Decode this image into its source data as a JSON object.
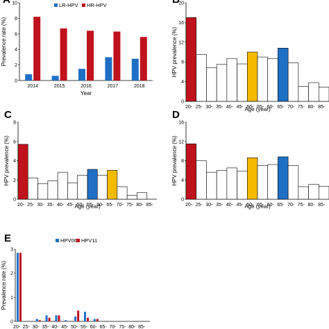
{
  "panels": [
    {
      "letter": "A"
    },
    {
      "letter": "B"
    },
    {
      "letter": "C"
    },
    {
      "letter": "D"
    },
    {
      "letter": "E"
    }
  ],
  "chart_data": [
    {
      "id": "A",
      "type": "bar",
      "categories": [
        "2014",
        "2015",
        "2016",
        "2017",
        "2018"
      ],
      "series": [
        {
          "name": "LR-HPV",
          "color": "#1f6fc5",
          "values": [
            0.8,
            0.6,
            1.5,
            3.0,
            2.8
          ]
        },
        {
          "name": "HR-HPV",
          "color": "#c0121c",
          "values": [
            8.2,
            6.7,
            6.4,
            6.3,
            5.6
          ]
        }
      ],
      "xlabel": "Year",
      "ylabel": "Prevalence rate (%)",
      "ylim": [
        0,
        10
      ],
      "yticks": [
        "0",
        "2",
        "4",
        "6",
        "8",
        "10"
      ],
      "legend": "top"
    },
    {
      "id": "B",
      "type": "bar",
      "categories": [
        "20-",
        "25-",
        "30-",
        "35-",
        "40-",
        "45-",
        "50-",
        "55-",
        "60-",
        "65-",
        "70-",
        "75-",
        "80-",
        "85-"
      ],
      "values": [
        17.0,
        9.5,
        6.8,
        7.5,
        8.7,
        7.6,
        10.0,
        9.0,
        8.7,
        10.8,
        7.8,
        3.0,
        3.8,
        2.9
      ],
      "highlight_colors": {
        "0": "#c0121c",
        "6": "#f5bb00",
        "9": "#1f6fc5"
      },
      "xlabel": "Age (year)",
      "ylabel": "HPV prevalence (%)",
      "ylim": [
        0,
        20
      ],
      "yticks": [
        "0",
        "4",
        "8",
        "12",
        "16",
        "20"
      ]
    },
    {
      "id": "C",
      "type": "bar",
      "categories": [
        "20-",
        "25-",
        "30-",
        "35-",
        "40-",
        "45-",
        "50-",
        "55-",
        "60-",
        "65-",
        "70-",
        "75-",
        "80-",
        "85-"
      ],
      "values": [
        5.7,
        2.2,
        1.6,
        1.9,
        2.8,
        1.7,
        2.5,
        3.1,
        2.5,
        3.0,
        1.3,
        0.4,
        0.7,
        0.0
      ],
      "highlight_colors": {
        "0": "#c0121c",
        "7": "#1f6fc5",
        "9": "#f5bb00"
      },
      "xlabel": "Age (year)",
      "ylabel": "HPV prevalence (%)",
      "ylim": [
        0,
        8
      ],
      "yticks": [
        "0",
        "2",
        "4",
        "6",
        "8"
      ]
    },
    {
      "id": "D",
      "type": "bar",
      "categories": [
        "20-",
        "25-",
        "30-",
        "35-",
        "40-",
        "45-",
        "50-",
        "55-",
        "60-",
        "65-",
        "70-",
        "75-",
        "80-",
        "85-"
      ],
      "values": [
        11.5,
        8.0,
        5.6,
        6.0,
        6.5,
        5.8,
        8.6,
        7.0,
        7.2,
        8.8,
        7.0,
        2.6,
        3.1,
        2.7
      ],
      "highlight_colors": {
        "0": "#c0121c",
        "6": "#f5bb00",
        "9": "#1f6fc5"
      },
      "xlabel": "Age (year)",
      "ylabel": "HPV prevalence (%)",
      "ylim": [
        0,
        16
      ],
      "yticks": [
        "0",
        "4",
        "8",
        "12",
        "16"
      ]
    },
    {
      "id": "E",
      "type": "bar",
      "categories": [
        "20-",
        "25-",
        "30-",
        "35-",
        "40-",
        "45-",
        "50-",
        "55-",
        "60-",
        "65-",
        "70-",
        "75-",
        "80-",
        "85-"
      ],
      "series": [
        {
          "name": "HPV06",
          "color": "#1f6fc5",
          "values": [
            2.85,
            0.0,
            0.1,
            0.25,
            0.25,
            0.05,
            0.2,
            0.4,
            0.1,
            0.0,
            0.0,
            0.0,
            0.0,
            0.0
          ]
        },
        {
          "name": "HPV11",
          "color": "#c0121c",
          "values": [
            2.85,
            0.0,
            0.05,
            0.15,
            0.25,
            0.0,
            0.45,
            0.15,
            0.1,
            0.0,
            0.0,
            0.0,
            0.0,
            0.0
          ]
        }
      ],
      "ylabel": "Prevalence rate (%)",
      "ylim": [
        0,
        3
      ],
      "yticks": [
        "0",
        "1",
        "2",
        "3"
      ],
      "legend": "top"
    }
  ]
}
